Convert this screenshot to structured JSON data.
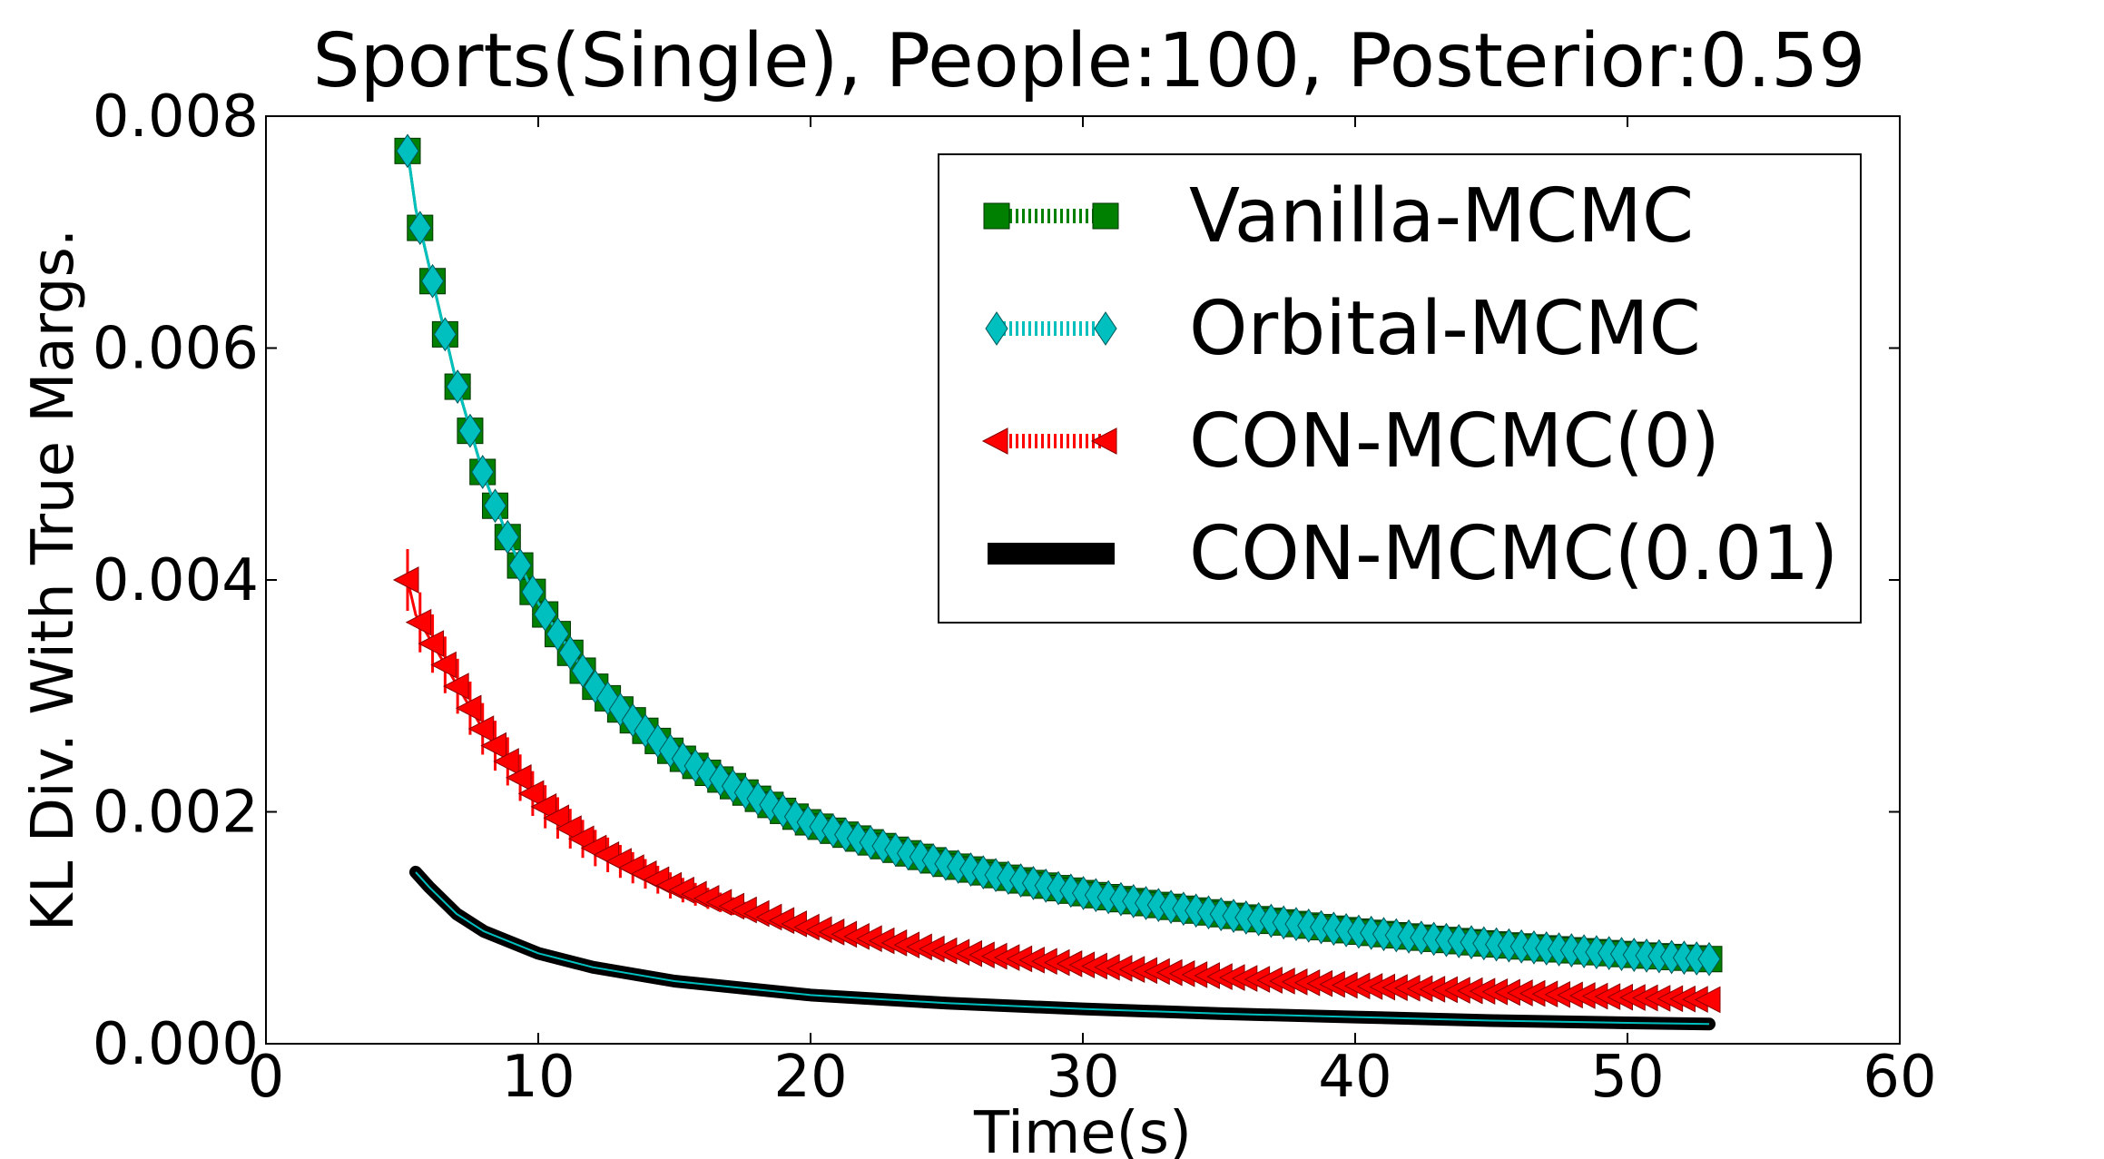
{
  "chart_data": {
    "type": "line",
    "title": "Sports(Single), People:100, Posterior:0.59",
    "xlabel": "Time(s)",
    "ylabel": "KL Div. With True Margs.",
    "xlim": [
      0,
      60
    ],
    "ylim": [
      0,
      0.008
    ],
    "xticks": [
      "0",
      "10",
      "20",
      "30",
      "40",
      "50",
      "60"
    ],
    "yticks": [
      "0.000",
      "0.002",
      "0.004",
      "0.006",
      "0.008"
    ],
    "grid": false,
    "legend_position": "top-right",
    "series": [
      {
        "name": "Vanilla-MCMC",
        "color": "#008000",
        "marker": "square",
        "x": [
          5.2,
          5.5,
          6.0,
          6.5,
          7.0,
          8.0,
          9.0,
          10.0,
          12.0,
          15.0,
          20.0,
          25.0,
          30.0,
          35.0,
          40.0,
          45.0,
          50.0,
          53.0
        ],
        "y": [
          0.0077,
          0.0072,
          0.0067,
          0.0062,
          0.0057,
          0.0049,
          0.0043,
          0.0038,
          0.0031,
          0.0025,
          0.0019,
          0.00155,
          0.0013,
          0.00112,
          0.00097,
          0.00086,
          0.00077,
          0.00073
        ]
      },
      {
        "name": "Orbital-MCMC",
        "color": "#00bfbf",
        "marker": "diamond",
        "x": [
          5.2,
          5.5,
          6.0,
          6.5,
          7.0,
          8.0,
          9.0,
          10.0,
          12.0,
          15.0,
          20.0,
          25.0,
          30.0,
          35.0,
          40.0,
          45.0,
          50.0,
          53.0
        ],
        "y": [
          0.0077,
          0.0072,
          0.0067,
          0.0062,
          0.0057,
          0.0049,
          0.0043,
          0.0038,
          0.0031,
          0.0025,
          0.0019,
          0.00155,
          0.0013,
          0.00112,
          0.00097,
          0.00086,
          0.00077,
          0.00073
        ]
      },
      {
        "name": "CON-MCMC(0)",
        "color": "#ff0000",
        "marker": "triangle-left",
        "x": [
          5.2,
          5.5,
          6.0,
          6.5,
          7.0,
          8.0,
          9.0,
          10.0,
          12.0,
          15.0,
          20.0,
          25.0,
          30.0,
          35.0,
          40.0,
          45.0,
          50.0,
          53.0
        ],
        "y": [
          0.004,
          0.0037,
          0.0035,
          0.0033,
          0.0031,
          0.0027,
          0.0024,
          0.0021,
          0.0017,
          0.00135,
          0.001,
          0.0008,
          0.00068,
          0.00058,
          0.0005,
          0.00045,
          0.0004,
          0.00038
        ]
      },
      {
        "name": "CON-MCMC(0.01)",
        "color": "#000000",
        "marker": "none",
        "x": [
          5.5,
          6.0,
          7.0,
          8.0,
          10.0,
          12.0,
          15.0,
          20.0,
          25.0,
          30.0,
          35.0,
          40.0,
          45.0,
          50.0,
          53.0
        ],
        "y": [
          0.00148,
          0.00135,
          0.00112,
          0.00097,
          0.00078,
          0.00066,
          0.00054,
          0.00042,
          0.00035,
          0.0003,
          0.00026,
          0.00023,
          0.0002,
          0.00018,
          0.00017
        ]
      }
    ]
  }
}
